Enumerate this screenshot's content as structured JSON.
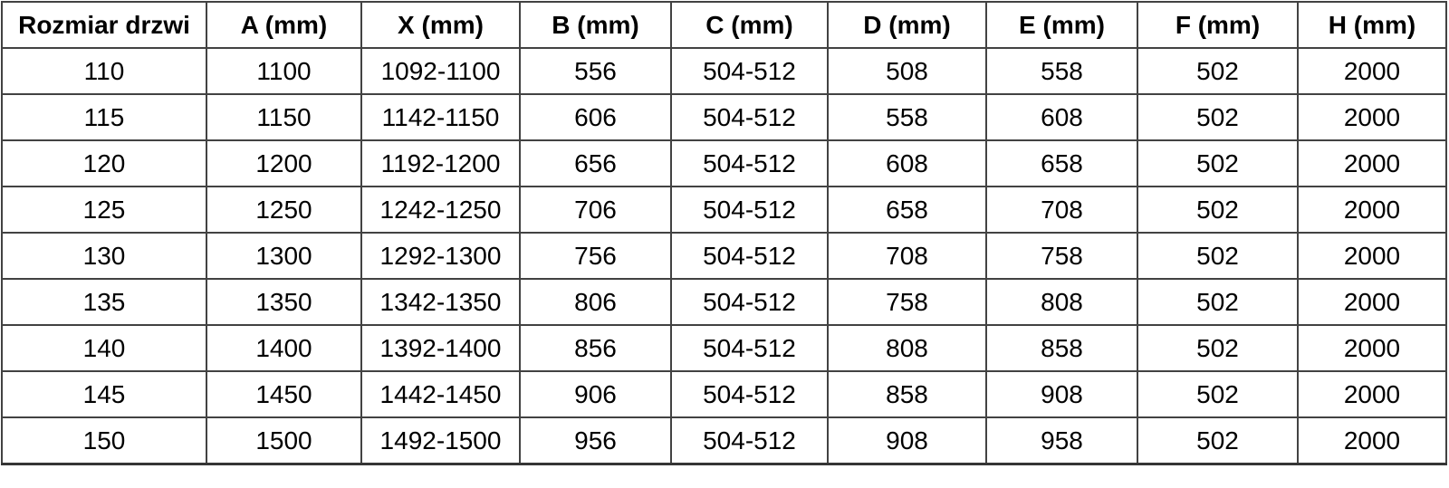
{
  "table": {
    "title": "door-size-dimensions-table",
    "headers": [
      "Rozmiar drzwi",
      "A (mm)",
      "X (mm)",
      "B (mm)",
      "C (mm)",
      "D (mm)",
      "E (mm)",
      "F (mm)",
      "H (mm)"
    ],
    "rows": [
      [
        "110",
        "1100",
        "1092-1100",
        "556",
        "504-512",
        "508",
        "558",
        "502",
        "2000"
      ],
      [
        "115",
        "1150",
        "1142-1150",
        "606",
        "504-512",
        "558",
        "608",
        "502",
        "2000"
      ],
      [
        "120",
        "1200",
        "1192-1200",
        "656",
        "504-512",
        "608",
        "658",
        "502",
        "2000"
      ],
      [
        "125",
        "1250",
        "1242-1250",
        "706",
        "504-512",
        "658",
        "708",
        "502",
        "2000"
      ],
      [
        "130",
        "1300",
        "1292-1300",
        "756",
        "504-512",
        "708",
        "758",
        "502",
        "2000"
      ],
      [
        "135",
        "1350",
        "1342-1350",
        "806",
        "504-512",
        "758",
        "808",
        "502",
        "2000"
      ],
      [
        "140",
        "1400",
        "1392-1400",
        "856",
        "504-512",
        "808",
        "858",
        "502",
        "2000"
      ],
      [
        "145",
        "1450",
        "1442-1450",
        "906",
        "504-512",
        "858",
        "908",
        "502",
        "2000"
      ],
      [
        "150",
        "1500",
        "1492-1500",
        "956",
        "504-512",
        "908",
        "958",
        "502",
        "2000"
      ]
    ]
  },
  "colors": {
    "text": "#000000",
    "border_inner": "#424242",
    "border_outer": "#353535",
    "background": "#ffffff"
  }
}
